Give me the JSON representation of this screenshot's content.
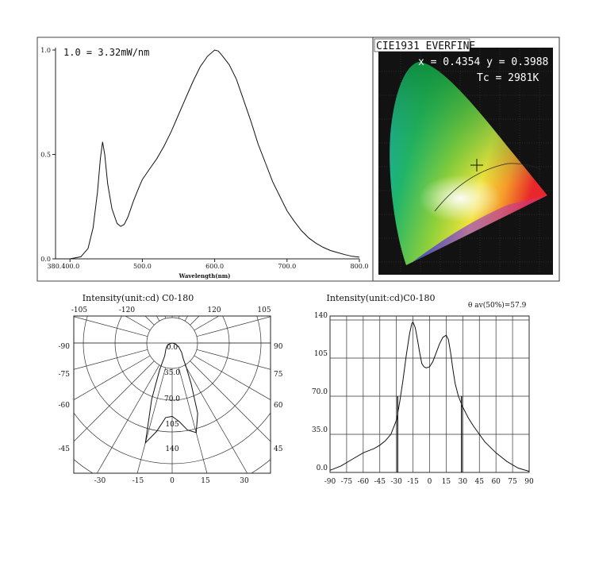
{
  "chart_data": [
    {
      "type": "line",
      "annotation": "1.0 = 3.32mW/nm",
      "xlabel": "Wavelength(nm)",
      "xlim": [
        380,
        800
      ],
      "ylim": [
        0,
        1.0
      ],
      "x_tick_labels": [
        "380.400.0",
        "500.0",
        "600.0",
        "700.0",
        "800.0"
      ],
      "x_ticks": [
        400,
        500,
        600,
        700,
        800
      ],
      "y_tick_labels": [
        "0.0",
        "0.5",
        "1.0"
      ],
      "y_ticks": [
        0,
        0.5,
        1.0
      ],
      "grid": false,
      "series": [
        {
          "x": [
            380,
            400,
            415,
            425,
            432,
            438,
            442,
            445,
            448,
            452,
            458,
            465,
            470,
            475,
            480,
            488,
            495,
            500,
            510,
            520,
            530,
            540,
            550,
            560,
            570,
            580,
            590,
            600,
            605,
            610,
            620,
            630,
            640,
            650,
            660,
            670,
            680,
            690,
            700,
            710,
            720,
            730,
            740,
            750,
            760,
            770,
            780,
            790,
            800
          ],
          "y": [
            0.0,
            0.0,
            0.01,
            0.05,
            0.15,
            0.32,
            0.48,
            0.56,
            0.5,
            0.36,
            0.24,
            0.17,
            0.155,
            0.165,
            0.2,
            0.28,
            0.34,
            0.38,
            0.43,
            0.48,
            0.54,
            0.61,
            0.69,
            0.77,
            0.85,
            0.92,
            0.97,
            1.0,
            0.995,
            0.975,
            0.93,
            0.86,
            0.76,
            0.66,
            0.55,
            0.46,
            0.37,
            0.3,
            0.23,
            0.18,
            0.135,
            0.1,
            0.075,
            0.055,
            0.04,
            0.03,
            0.02,
            0.012,
            0.008
          ]
        }
      ]
    },
    {
      "type": "scatter",
      "title": "CIE1931 EVERFINE",
      "annotations": [
        "x = 0.4354  y = 0.3988",
        "Tc = 2981K"
      ],
      "points": [
        {
          "x": 0.4354,
          "y": 0.3988
        }
      ],
      "xlim": [
        0,
        0.8
      ],
      "ylim": [
        0,
        0.9
      ]
    },
    {
      "type": "line",
      "subtype": "polar",
      "title": "Intensity(unit:cd) C0-180",
      "radial_tick_labels": [
        "0.0",
        "35.0",
        "70.0",
        "105",
        "140"
      ],
      "radial_ticks": [
        0,
        35,
        70,
        105,
        140
      ],
      "angle_tick_labels": [
        "-105",
        "-120",
        "120",
        "105",
        "-90",
        "90",
        "-75",
        "75",
        "-60",
        "60",
        "-45",
        "45",
        "-30",
        "-15",
        "0",
        "15",
        "30"
      ],
      "series": [
        {
          "angle": [
            -90,
            -75,
            -60,
            -45,
            -35,
            -30,
            -25,
            -20,
            -15,
            -10,
            -5,
            0,
            5,
            10,
            15,
            20,
            25,
            30,
            35,
            45,
            60,
            75,
            90
          ],
          "r": [
            0,
            3,
            8,
            12,
            16,
            20,
            40,
            80,
            138,
            120,
            100,
            98,
            105,
            118,
            124,
            100,
            60,
            38,
            26,
            18,
            10,
            4,
            0
          ]
        }
      ]
    },
    {
      "type": "line",
      "title": "Intensity(unit:cd)C0-180",
      "annotation": "θ av(50%)=57.9",
      "xlim": [
        -90,
        90
      ],
      "ylim": [
        0,
        140
      ],
      "x_tick_labels": [
        "-90",
        "-75",
        "-60",
        "-45",
        "-30",
        "-15",
        "0",
        "15",
        "30",
        "45",
        "60",
        "75",
        "90"
      ],
      "y_tick_labels": [
        "0.0",
        "35.0",
        "70.0",
        "105",
        "140"
      ],
      "grid": true,
      "half_intensity_markers": [
        -28.9,
        28.9
      ],
      "series": [
        {
          "x": [
            -90,
            -80,
            -70,
            -60,
            -50,
            -45,
            -40,
            -35,
            -30,
            -27,
            -24,
            -21,
            -18,
            -16,
            -15,
            -13,
            -11,
            -9,
            -7,
            -5,
            -3,
            0,
            3,
            6,
            9,
            12,
            15,
            17,
            19,
            21,
            23,
            26,
            30,
            35,
            40,
            45,
            50,
            60,
            70,
            80,
            90
          ],
          "y": [
            2,
            6,
            12,
            18,
            22,
            25,
            29,
            35,
            48,
            65,
            85,
            108,
            128,
            137,
            138,
            133,
            122,
            110,
            100,
            97,
            96,
            97,
            102,
            110,
            118,
            124,
            126,
            122,
            110,
            95,
            82,
            70,
            60,
            50,
            42,
            35,
            28,
            18,
            10,
            4,
            1
          ]
        }
      ]
    }
  ]
}
